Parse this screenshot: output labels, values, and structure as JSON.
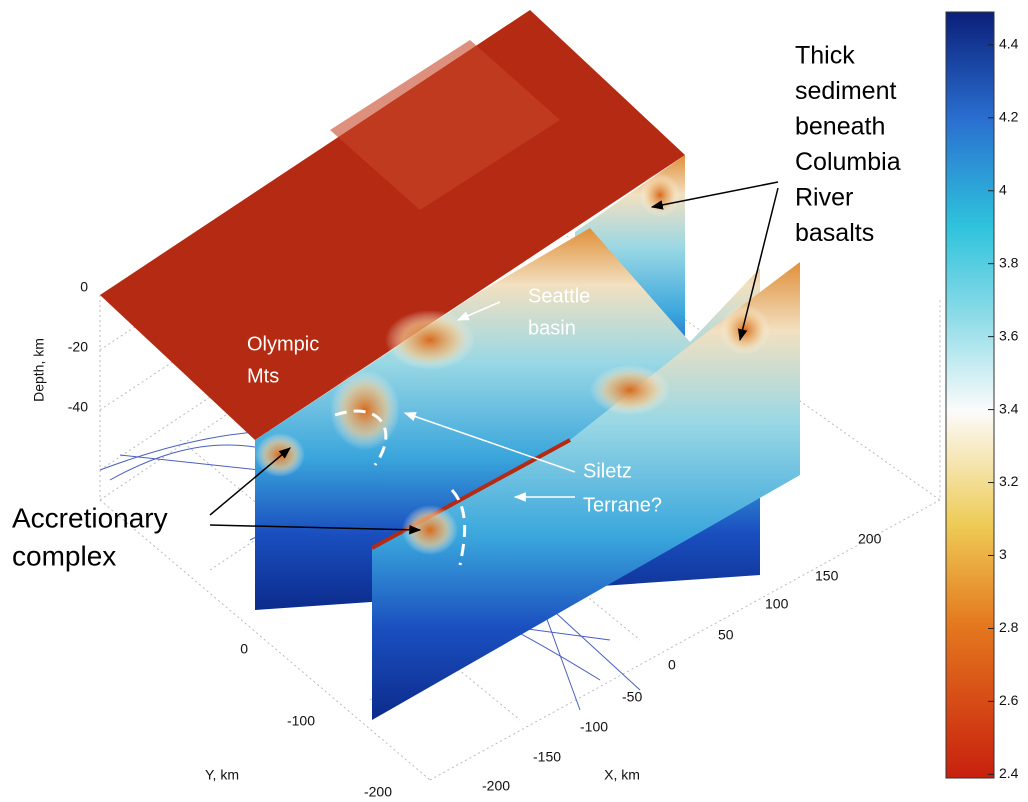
{
  "figure": {
    "colorbar": {
      "lim": [
        2.39,
        4.49
      ],
      "ticks": [
        2.4,
        2.6,
        2.8,
        3,
        3.2,
        3.4,
        3.6,
        3.8,
        4,
        4.2,
        4.4
      ]
    },
    "axes": {
      "depth_label": "Depth, km",
      "depth_ticks": [
        0,
        -20,
        -40
      ],
      "y_label": "Y, km",
      "y_ticks": [
        0,
        -100,
        -200
      ],
      "x_label": "X, km",
      "x_ticks": [
        200,
        150,
        100,
        50,
        0,
        -50,
        -100,
        -150,
        -200
      ]
    },
    "annotations": {
      "thick_sediment": [
        "Thick",
        "sediment",
        "beneath",
        "Columbia",
        "River",
        "basalts"
      ],
      "seattle_basin": [
        "Seattle",
        "basin"
      ],
      "olympic_mts": [
        "Olympic",
        "Mts"
      ],
      "siletz_terrane": [
        "Siletz",
        "Terrane?"
      ],
      "accretionary_complex": [
        "Accretionary",
        "complex"
      ]
    }
  }
}
